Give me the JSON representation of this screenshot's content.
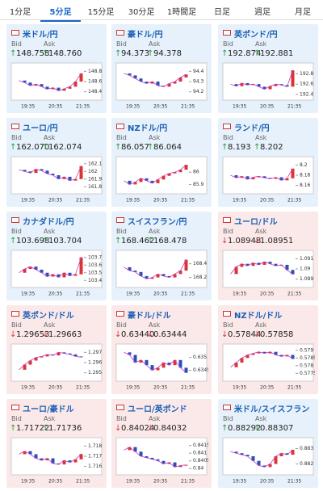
{
  "tabs": [
    "1分足",
    "5分足",
    "15分足",
    "30分足",
    "1時間足",
    "日足",
    "週足",
    "月足"
  ],
  "active_tab": 1,
  "labels": {
    "bid": "Bid",
    "ask": "Ask"
  },
  "time_labels": [
    "19:35",
    "20:35",
    "21:35"
  ],
  "tiles": [
    {
      "name": "米ドル/円",
      "bid": "148.758",
      "ask": "148.760",
      "arrow": "↑",
      "arrow_color": "#2a9a3a",
      "background": "#e6f1fb",
      "ylim": [
        148.3,
        148.9
      ],
      "yticks": [
        148.8,
        148.6,
        148.4
      ],
      "values": [
        148.62,
        148.58,
        148.52,
        148.55,
        148.5,
        148.45,
        148.48,
        148.42,
        148.46,
        148.5,
        148.6,
        148.76
      ]
    },
    {
      "name": "豪ドル/円",
      "bid": "94.373",
      "ask": "94.378",
      "arrow": "↑",
      "arrow_color": "#2a9a3a",
      "background": "#e6f1fb",
      "ylim": [
        94.15,
        94.45
      ],
      "yticks": [
        94.4,
        94.3,
        94.2
      ],
      "values": [
        94.38,
        94.36,
        94.33,
        94.3,
        94.28,
        94.3,
        94.26,
        94.25,
        94.28,
        94.3,
        94.34,
        94.37
      ]
    },
    {
      "name": "英ポンド/円",
      "bid": "192.874",
      "ask": "192.881",
      "arrow": "↑",
      "arrow_color": "#2a9a3a",
      "background": "#e6f1fb",
      "ylim": [
        192.35,
        192.95
      ],
      "yticks": [
        192.8,
        192.6,
        192.4
      ],
      "values": [
        192.6,
        192.56,
        192.62,
        192.58,
        192.6,
        192.55,
        192.5,
        192.56,
        192.6,
        192.58,
        192.55,
        192.87
      ]
    },
    {
      "name": "ユーロ/円",
      "bid": "162.070",
      "ask": "162.074",
      "arrow": "↑",
      "arrow_color": "#2a9a3a",
      "background": "#e6f1fb",
      "ylim": [
        161.75,
        162.15
      ],
      "yticks": [
        162.1,
        162,
        161.9,
        161.8
      ],
      "values": [
        162.02,
        162.0,
        161.98,
        162.03,
        162.01,
        161.97,
        161.95,
        161.9,
        161.93,
        161.88,
        161.9,
        162.07
      ]
    },
    {
      "name": "NZドル/円",
      "bid": "86.057",
      "ask": "86.064",
      "arrow": "↑",
      "arrow_color": "#2a9a3a",
      "background": "#e6f1fb",
      "ylim": [
        85.85,
        86.1
      ],
      "yticks": [
        86,
        85.9
      ],
      "values": [
        85.93,
        85.9,
        85.92,
        85.95,
        85.93,
        85.91,
        85.94,
        85.97,
        85.99,
        86.0,
        86.02,
        86.06
      ]
    },
    {
      "name": "ランド/円",
      "bid": "8.193",
      "ask": "8.202",
      "arrow": "↑",
      "arrow_color": "#2a9a3a",
      "background": "#e6f1fb",
      "ylim": [
        8.15,
        8.21
      ],
      "yticks": [
        8.2,
        8.18,
        8.16
      ],
      "values": [
        8.18,
        8.175,
        8.178,
        8.172,
        8.176,
        8.178,
        8.175,
        8.173,
        8.176,
        8.17,
        8.174,
        8.193
      ]
    },
    {
      "name": "カナダドル/円",
      "bid": "103.698",
      "ask": "103.704",
      "arrow": "↑",
      "arrow_color": "#2a9a3a",
      "background": "#e6f1fb",
      "ylim": [
        103.35,
        103.75
      ],
      "yticks": [
        103.7,
        103.6,
        103.5,
        103.4
      ],
      "values": [
        103.5,
        103.55,
        103.58,
        103.54,
        103.5,
        103.45,
        103.48,
        103.44,
        103.5,
        103.46,
        103.48,
        103.7
      ]
    },
    {
      "name": "スイスフラン/円",
      "bid": "168.462",
      "ask": "168.478",
      "arrow": "↑",
      "arrow_color": "#2a9a3a",
      "background": "#e6f1fb",
      "ylim": [
        168.1,
        168.55
      ],
      "yticks": [
        168.4,
        168.2
      ],
      "values": [
        168.35,
        168.3,
        168.28,
        168.22,
        168.18,
        168.2,
        168.25,
        168.22,
        168.2,
        168.25,
        168.3,
        168.46
      ]
    },
    {
      "name": "ユーロ/ドル",
      "bid": "1.08948",
      "ask": "1.08951",
      "arrow": "↓",
      "arrow_color": "#d23a3a",
      "background": "#fbe9ea",
      "ylim": [
        1.0885,
        1.0915
      ],
      "yticks": [
        1.091,
        1.09,
        1.089
      ],
      "values": [
        1.0895,
        1.0902,
        1.0905,
        1.0903,
        1.0906,
        1.0904,
        1.0907,
        1.0905,
        1.0903,
        1.0904,
        1.0899,
        1.08948
      ]
    },
    {
      "name": "英ポンド/ドル",
      "bid": "1.29653",
      "ask": "1.29663",
      "arrow": "↓",
      "arrow_color": "#d23a3a",
      "background": "#fbe9ea",
      "ylim": [
        1.2945,
        1.2975
      ],
      "yticks": [
        1.297,
        1.296,
        1.295
      ],
      "values": [
        1.2953,
        1.2958,
        1.2962,
        1.2965,
        1.2966,
        1.2968,
        1.2967,
        1.297,
        1.2969,
        1.2968,
        1.2966,
        1.29653
      ]
    },
    {
      "name": "豪ドル/ドル",
      "bid": "0.63440",
      "ask": "0.63444",
      "arrow": "↓",
      "arrow_color": "#d23a3a",
      "background": "#fbe9ea",
      "ylim": [
        0.6342,
        0.6354
      ],
      "yticks": [
        0.635,
        0.6345
      ],
      "values": [
        0.6352,
        0.6351,
        0.6348,
        0.6349,
        0.6347,
        0.6345,
        0.6346,
        0.6348,
        0.6347,
        0.6349,
        0.6346,
        0.6344
      ]
    },
    {
      "name": "NZドル/ドル",
      "bid": "0.57844",
      "ask": "0.57858",
      "arrow": "↓",
      "arrow_color": "#d23a3a",
      "background": "#fbe9ea",
      "ylim": [
        0.5772,
        0.5792
      ],
      "yticks": [
        0.579,
        0.5785,
        0.578,
        0.5775
      ],
      "values": [
        0.5779,
        0.5782,
        0.5785,
        0.5787,
        0.5788,
        0.5789,
        0.5788,
        0.5789,
        0.5787,
        0.5786,
        0.5787,
        0.57844
      ]
    },
    {
      "name": "ユーロ/豪ドル",
      "bid": "1.71722",
      "ask": "1.71736",
      "arrow": "↑",
      "arrow_color": "#2a9a3a",
      "background": "#fbe9ea",
      "ylim": [
        1.7155,
        1.7185
      ],
      "yticks": [
        1.718,
        1.717,
        1.716
      ],
      "values": [
        1.7172,
        1.7175,
        1.7172,
        1.7168,
        1.7166,
        1.7168,
        1.7163,
        1.7162,
        1.7166,
        1.7164,
        1.7167,
        1.71722
      ]
    },
    {
      "name": "ユーロ/英ポンド",
      "bid": "0.84024",
      "ask": "0.84032",
      "arrow": "↓",
      "arrow_color": "#d23a3a",
      "background": "#fbe9ea",
      "ylim": [
        0.8398,
        0.8418
      ],
      "yticks": [
        0.8415,
        0.841,
        0.8405,
        0.84
      ],
      "values": [
        0.8412,
        0.8414,
        0.8411,
        0.8408,
        0.8407,
        0.8406,
        0.8405,
        0.8403,
        0.8404,
        0.8401,
        0.8402,
        0.84024
      ]
    },
    {
      "name": "米ドル/スイスフラン",
      "bid": "0.88292",
      "ask": "0.88307",
      "arrow": "↑",
      "arrow_color": "#2a9a3a",
      "background": "#e6f1fb",
      "ylim": [
        0.8815,
        0.8835
      ],
      "yticks": [
        0.883,
        0.882
      ],
      "values": [
        0.8828,
        0.8827,
        0.8826,
        0.8825,
        0.8822,
        0.8819,
        0.8818,
        0.882,
        0.8825,
        0.8827,
        0.8826,
        0.88292
      ]
    }
  ]
}
